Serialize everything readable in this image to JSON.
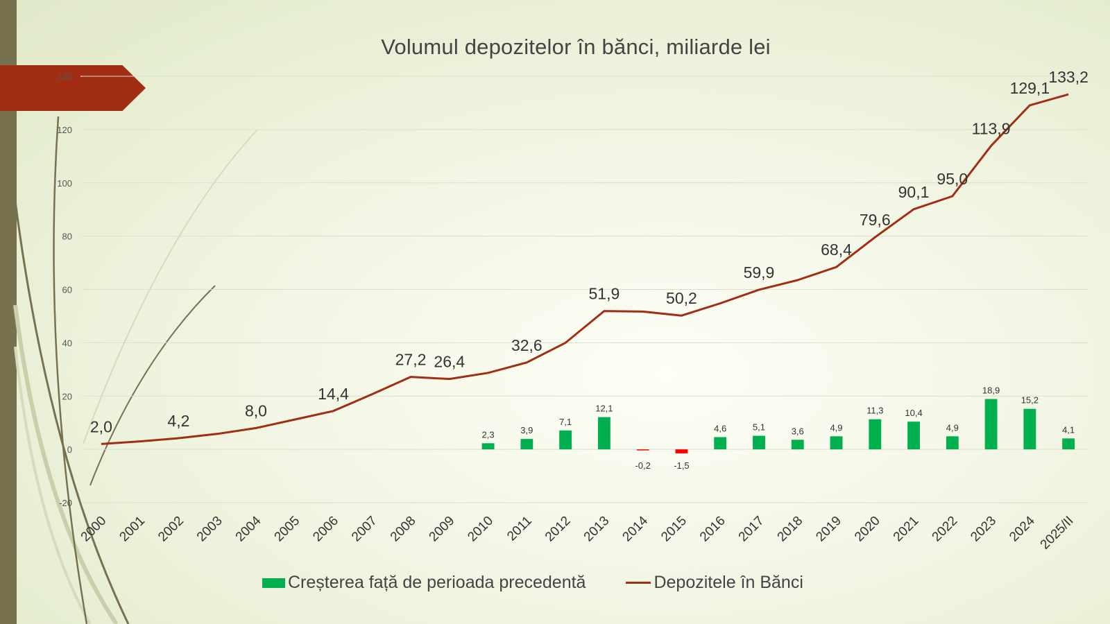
{
  "colors": {
    "bar_positive": "#00b04f",
    "bar_negative": "#ff0000",
    "line": "#a12d12",
    "accent_bar": "#77714f",
    "title_tab": "#a12d12"
  },
  "chart_data": {
    "type": "bar+line",
    "title": "Volumul depozitelor în bănci, miliarde lei",
    "categories": [
      "2000",
      "2001",
      "2002",
      "2003",
      "2004",
      "2005",
      "2006",
      "2007",
      "2008",
      "2009",
      "2010",
      "2011",
      "2012",
      "2013",
      "2014",
      "2015",
      "2016",
      "2017",
      "2018",
      "2019",
      "2020",
      "2021",
      "2022",
      "2023",
      "2024",
      "2025/II"
    ],
    "ylim": [
      -20,
      140
    ],
    "yticks": [
      -20,
      0,
      20,
      40,
      60,
      80,
      100,
      120,
      140
    ],
    "grid": true,
    "legend_position": "bottom",
    "series": [
      {
        "name": "Creșterea față de perioada precedentă",
        "type": "bar",
        "values": [
          null,
          null,
          null,
          null,
          null,
          null,
          null,
          null,
          null,
          null,
          2.3,
          3.9,
          7.1,
          12.1,
          -0.2,
          -1.5,
          4.6,
          5.1,
          3.6,
          4.9,
          11.3,
          10.4,
          4.9,
          18.9,
          15.2,
          4.1
        ],
        "labels": [
          "",
          "",
          "",
          "",
          "",
          "",
          "",
          "",
          "",
          "",
          "2,3",
          "3,9",
          "7,1",
          "12,1",
          "-0,2",
          "-1,5",
          "4,6",
          "5,1",
          "3,6",
          "4,9",
          "11,3",
          "10,4",
          "4,9",
          "18,9",
          "15,2",
          "4,1"
        ]
      },
      {
        "name": "Depozitele în Bănci",
        "type": "line",
        "values": [
          2.0,
          3.0,
          4.2,
          5.8,
          8.0,
          11.2,
          14.4,
          20.7,
          27.2,
          26.4,
          28.7,
          32.6,
          40.0,
          51.9,
          51.7,
          50.2,
          54.8,
          59.9,
          63.5,
          68.4,
          79.6,
          90.1,
          95.0,
          113.9,
          129.1,
          133.2
        ],
        "labels": [
          "2,0",
          "",
          "4,2",
          "",
          "8,0",
          "",
          "14,4",
          "",
          "27,2",
          "26,4",
          "",
          "32,6",
          "",
          "51,9",
          "",
          "50,2",
          "",
          "59,9",
          "",
          "68,4",
          "79,6",
          "90,1",
          "95,0",
          "113,9",
          "129,1",
          "133,2"
        ]
      }
    ]
  },
  "legend": {
    "bars_label": "Creșterea față de perioada precedentă",
    "line_label": "Depozitele în Bănci"
  }
}
